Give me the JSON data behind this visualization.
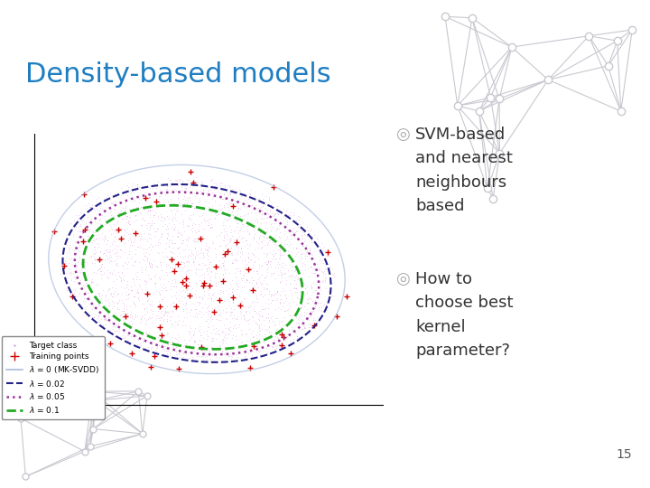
{
  "title": "Density-based models",
  "title_color": "#1F7EC2",
  "title_fontsize": 22,
  "bullet1_text": "SVM-based\nand nearest\nneighbours\nbased",
  "bullet2_text": "How to\nchoose best\nkernel\nparameter?",
  "bullet_color": "#333333",
  "bullet_symbol_color": "#aaaaaa",
  "slide_number": "15",
  "bg_color": "#ffffff",
  "plot_bg": "#ffffff",
  "scatter_target_color": "#cc66cc",
  "scatter_train_color": "#cc0000",
  "n_target": 3000,
  "n_train": 60
}
